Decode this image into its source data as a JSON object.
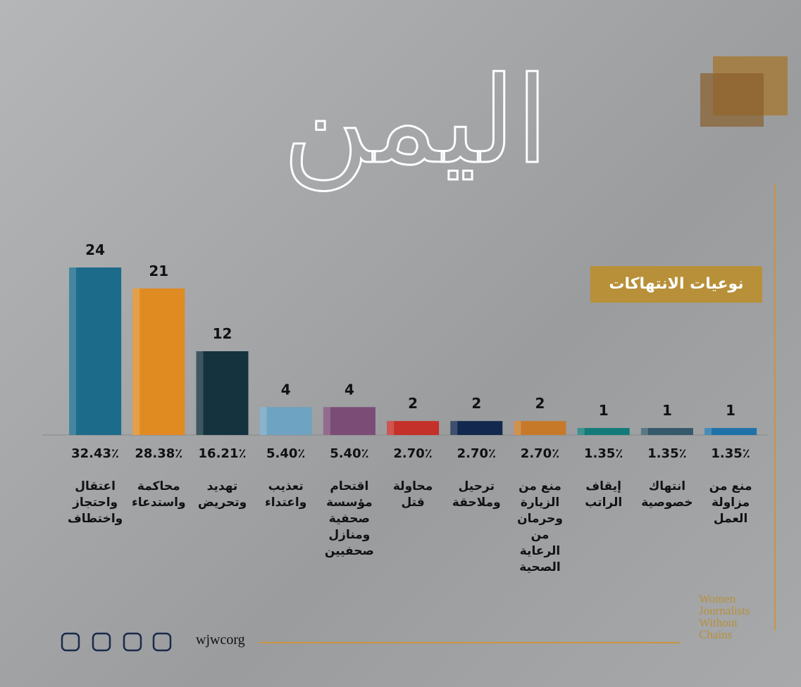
{
  "chart_data": {
    "type": "bar",
    "title": "اليمن",
    "subtitle": "نوعيات الانتهاكات",
    "categories": [
      "اعتقال\nواحتجاز\nواختطاف",
      "محاكمة\nواستدعاء",
      "تهديد\nوتحريض",
      "تعذيب\nواعتداء",
      "اقتحام\nمؤسسة\nصحفية\nومنازل\nصحفيين",
      "محاولة\nقتل",
      "ترحيل\nوملاحقة",
      "منع من\nالزيارة\nوحرمان\nمن\nالرعاية\nالصحية",
      "إيقاف\nالراتب",
      "انتهاك\nخصوصية",
      "منع من\nمزاولة\nالعمل"
    ],
    "values": [
      24,
      21,
      12,
      4,
      4,
      2,
      2,
      2,
      1,
      1,
      1
    ],
    "percentages": [
      {
        "value": 32.43,
        "label": "32.43٪"
      },
      {
        "value": 28.38,
        "label": "28.38٪"
      },
      {
        "value": 16.21,
        "label": "16.21٪"
      },
      {
        "value": 5.4,
        "label": "5.40٪"
      },
      {
        "value": 5.4,
        "label": "5.40٪"
      },
      {
        "value": 2.7,
        "label": "2.70٪"
      },
      {
        "value": 2.7,
        "label": "2.70٪"
      },
      {
        "value": 2.7,
        "label": "2.70٪"
      },
      {
        "value": 1.35,
        "label": "1.35٪"
      },
      {
        "value": 1.35,
        "label": "1.35٪"
      },
      {
        "value": 1.35,
        "label": "1.35٪"
      }
    ],
    "colors": [
      "#1d6b8a",
      "#e08a22",
      "#15333f",
      "#6fa3c2",
      "#7a4c76",
      "#c4302a",
      "#13284f",
      "#c7792a",
      "#137a78",
      "#35596a",
      "#1f72a8"
    ],
    "ylim": [
      0,
      24
    ],
    "website": "wjwcorg",
    "logo": "Women\nJournalists\nWithout\nChains"
  }
}
